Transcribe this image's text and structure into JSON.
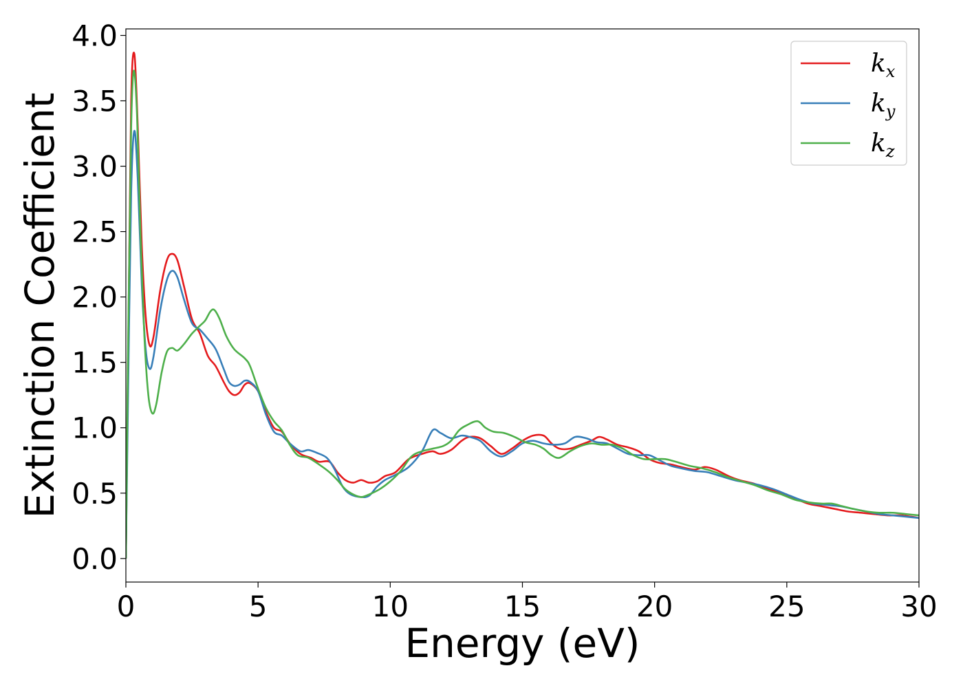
{
  "chart_data": {
    "type": "line",
    "xlabel": "Energy (eV)",
    "ylabel": "Extinction Coefficient",
    "xlim": [
      0,
      30
    ],
    "ylim": [
      -0.18,
      4.05
    ],
    "x_ticks": [
      0,
      5,
      10,
      15,
      20,
      25,
      30
    ],
    "x_tick_labels": [
      "0",
      "5",
      "10",
      "15",
      "20",
      "25",
      "30"
    ],
    "y_ticks": [
      0.0,
      0.5,
      1.0,
      1.5,
      2.0,
      2.5,
      3.0,
      3.5,
      4.0
    ],
    "y_tick_labels": [
      "0.0",
      "0.5",
      "1.0",
      "1.5",
      "2.0",
      "2.5",
      "3.0",
      "3.5",
      "4.0"
    ],
    "grid": false,
    "legend_position": "top-right",
    "series": [
      {
        "name": "k_x",
        "label_base": "k",
        "label_sub": "x",
        "color": "#e41a1c",
        "points": [
          [
            0,
            0.0
          ],
          [
            0.1,
            1.8
          ],
          [
            0.2,
            3.5
          ],
          [
            0.32,
            3.86
          ],
          [
            0.45,
            3.3
          ],
          [
            0.6,
            2.4
          ],
          [
            0.75,
            1.85
          ],
          [
            0.9,
            1.63
          ],
          [
            1.05,
            1.7
          ],
          [
            1.3,
            2.05
          ],
          [
            1.55,
            2.28
          ],
          [
            1.75,
            2.33
          ],
          [
            1.95,
            2.28
          ],
          [
            2.2,
            2.08
          ],
          [
            2.5,
            1.83
          ],
          [
            2.8,
            1.72
          ],
          [
            3.1,
            1.55
          ],
          [
            3.4,
            1.47
          ],
          [
            3.7,
            1.35
          ],
          [
            3.9,
            1.28
          ],
          [
            4.1,
            1.25
          ],
          [
            4.3,
            1.27
          ],
          [
            4.5,
            1.33
          ],
          [
            4.7,
            1.34
          ],
          [
            5.0,
            1.28
          ],
          [
            5.3,
            1.12
          ],
          [
            5.6,
            1.0
          ],
          [
            5.9,
            0.97
          ],
          [
            6.2,
            0.88
          ],
          [
            6.6,
            0.8
          ],
          [
            7.0,
            0.77
          ],
          [
            7.3,
            0.74
          ],
          [
            7.7,
            0.74
          ],
          [
            8.0,
            0.66
          ],
          [
            8.3,
            0.6
          ],
          [
            8.6,
            0.58
          ],
          [
            8.9,
            0.6
          ],
          [
            9.2,
            0.58
          ],
          [
            9.5,
            0.59
          ],
          [
            9.8,
            0.63
          ],
          [
            10.2,
            0.66
          ],
          [
            10.7,
            0.76
          ],
          [
            11.2,
            0.8
          ],
          [
            11.6,
            0.82
          ],
          [
            11.9,
            0.8
          ],
          [
            12.3,
            0.83
          ],
          [
            12.7,
            0.9
          ],
          [
            13.0,
            0.93
          ],
          [
            13.4,
            0.92
          ],
          [
            13.8,
            0.86
          ],
          [
            14.2,
            0.8
          ],
          [
            14.6,
            0.84
          ],
          [
            15.0,
            0.9
          ],
          [
            15.4,
            0.94
          ],
          [
            15.8,
            0.94
          ],
          [
            16.1,
            0.88
          ],
          [
            16.4,
            0.84
          ],
          [
            16.8,
            0.84
          ],
          [
            17.2,
            0.87
          ],
          [
            17.6,
            0.9
          ],
          [
            17.9,
            0.93
          ],
          [
            18.2,
            0.91
          ],
          [
            18.6,
            0.87
          ],
          [
            19.0,
            0.85
          ],
          [
            19.4,
            0.82
          ],
          [
            19.8,
            0.76
          ],
          [
            20.2,
            0.73
          ],
          [
            20.6,
            0.72
          ],
          [
            21.0,
            0.7
          ],
          [
            21.5,
            0.68
          ],
          [
            21.9,
            0.7
          ],
          [
            22.3,
            0.68
          ],
          [
            22.8,
            0.63
          ],
          [
            23.2,
            0.6
          ],
          [
            23.8,
            0.57
          ],
          [
            24.3,
            0.53
          ],
          [
            24.8,
            0.5
          ],
          [
            25.3,
            0.46
          ],
          [
            25.8,
            0.42
          ],
          [
            26.3,
            0.4
          ],
          [
            26.8,
            0.38
          ],
          [
            27.3,
            0.36
          ],
          [
            27.8,
            0.35
          ],
          [
            28.3,
            0.34
          ],
          [
            28.8,
            0.33
          ],
          [
            29.3,
            0.33
          ],
          [
            29.7,
            0.32
          ],
          [
            30.0,
            0.31
          ]
        ]
      },
      {
        "name": "k_y",
        "label_base": "k",
        "label_sub": "y",
        "color": "#377eb8",
        "points": [
          [
            0,
            0.0
          ],
          [
            0.1,
            1.5
          ],
          [
            0.2,
            2.8
          ],
          [
            0.32,
            3.27
          ],
          [
            0.45,
            2.9
          ],
          [
            0.6,
            2.1
          ],
          [
            0.75,
            1.6
          ],
          [
            0.9,
            1.45
          ],
          [
            1.05,
            1.55
          ],
          [
            1.3,
            1.9
          ],
          [
            1.55,
            2.13
          ],
          [
            1.75,
            2.2
          ],
          [
            1.95,
            2.15
          ],
          [
            2.2,
            1.98
          ],
          [
            2.5,
            1.8
          ],
          [
            2.8,
            1.75
          ],
          [
            3.1,
            1.68
          ],
          [
            3.4,
            1.6
          ],
          [
            3.7,
            1.45
          ],
          [
            3.9,
            1.35
          ],
          [
            4.1,
            1.32
          ],
          [
            4.3,
            1.33
          ],
          [
            4.5,
            1.36
          ],
          [
            4.7,
            1.35
          ],
          [
            5.0,
            1.28
          ],
          [
            5.3,
            1.1
          ],
          [
            5.6,
            0.97
          ],
          [
            5.9,
            0.94
          ],
          [
            6.2,
            0.88
          ],
          [
            6.6,
            0.82
          ],
          [
            6.9,
            0.83
          ],
          [
            7.2,
            0.81
          ],
          [
            7.6,
            0.77
          ],
          [
            7.9,
            0.68
          ],
          [
            8.2,
            0.55
          ],
          [
            8.5,
            0.49
          ],
          [
            8.9,
            0.47
          ],
          [
            9.2,
            0.48
          ],
          [
            9.5,
            0.55
          ],
          [
            9.8,
            0.6
          ],
          [
            10.2,
            0.64
          ],
          [
            10.7,
            0.7
          ],
          [
            11.2,
            0.82
          ],
          [
            11.6,
            0.98
          ],
          [
            11.9,
            0.96
          ],
          [
            12.3,
            0.92
          ],
          [
            12.7,
            0.94
          ],
          [
            13.0,
            0.93
          ],
          [
            13.4,
            0.9
          ],
          [
            13.8,
            0.82
          ],
          [
            14.2,
            0.78
          ],
          [
            14.6,
            0.82
          ],
          [
            15.0,
            0.88
          ],
          [
            15.4,
            0.9
          ],
          [
            15.8,
            0.88
          ],
          [
            16.2,
            0.87
          ],
          [
            16.6,
            0.88
          ],
          [
            17.0,
            0.93
          ],
          [
            17.4,
            0.92
          ],
          [
            17.8,
            0.89
          ],
          [
            18.2,
            0.88
          ],
          [
            18.6,
            0.84
          ],
          [
            19.0,
            0.8
          ],
          [
            19.4,
            0.79
          ],
          [
            19.8,
            0.79
          ],
          [
            20.2,
            0.75
          ],
          [
            20.6,
            0.71
          ],
          [
            21.0,
            0.69
          ],
          [
            21.5,
            0.67
          ],
          [
            22.0,
            0.66
          ],
          [
            22.5,
            0.63
          ],
          [
            23.0,
            0.6
          ],
          [
            23.5,
            0.58
          ],
          [
            24.0,
            0.56
          ],
          [
            24.5,
            0.53
          ],
          [
            25.0,
            0.49
          ],
          [
            25.5,
            0.45
          ],
          [
            26.0,
            0.42
          ],
          [
            26.5,
            0.41
          ],
          [
            27.0,
            0.4
          ],
          [
            27.5,
            0.38
          ],
          [
            28.0,
            0.36
          ],
          [
            28.5,
            0.34
          ],
          [
            29.0,
            0.33
          ],
          [
            29.5,
            0.32
          ],
          [
            30.0,
            0.31
          ]
        ]
      },
      {
        "name": "k_z",
        "label_base": "k",
        "label_sub": "z",
        "color": "#4daf4a",
        "points": [
          [
            0,
            0.0
          ],
          [
            0.1,
            1.9
          ],
          [
            0.2,
            3.3
          ],
          [
            0.3,
            3.73
          ],
          [
            0.42,
            3.4
          ],
          [
            0.55,
            2.5
          ],
          [
            0.7,
            1.7
          ],
          [
            0.85,
            1.25
          ],
          [
            1.0,
            1.11
          ],
          [
            1.15,
            1.18
          ],
          [
            1.35,
            1.42
          ],
          [
            1.55,
            1.58
          ],
          [
            1.75,
            1.61
          ],
          [
            1.95,
            1.59
          ],
          [
            2.2,
            1.64
          ],
          [
            2.5,
            1.72
          ],
          [
            2.8,
            1.78
          ],
          [
            3.0,
            1.82
          ],
          [
            3.2,
            1.89
          ],
          [
            3.35,
            1.9
          ],
          [
            3.55,
            1.83
          ],
          [
            3.8,
            1.7
          ],
          [
            4.1,
            1.6
          ],
          [
            4.5,
            1.53
          ],
          [
            4.7,
            1.47
          ],
          [
            5.0,
            1.3
          ],
          [
            5.3,
            1.15
          ],
          [
            5.6,
            1.05
          ],
          [
            5.9,
            0.98
          ],
          [
            6.2,
            0.87
          ],
          [
            6.5,
            0.79
          ],
          [
            6.9,
            0.77
          ],
          [
            7.3,
            0.72
          ],
          [
            7.7,
            0.66
          ],
          [
            8.0,
            0.6
          ],
          [
            8.3,
            0.53
          ],
          [
            8.6,
            0.49
          ],
          [
            8.9,
            0.47
          ],
          [
            9.2,
            0.49
          ],
          [
            9.6,
            0.53
          ],
          [
            10.0,
            0.59
          ],
          [
            10.4,
            0.67
          ],
          [
            10.8,
            0.78
          ],
          [
            11.2,
            0.82
          ],
          [
            11.6,
            0.84
          ],
          [
            12.0,
            0.86
          ],
          [
            12.3,
            0.9
          ],
          [
            12.6,
            0.98
          ],
          [
            12.9,
            1.02
          ],
          [
            13.3,
            1.05
          ],
          [
            13.6,
            1.0
          ],
          [
            13.9,
            0.97
          ],
          [
            14.3,
            0.96
          ],
          [
            14.7,
            0.93
          ],
          [
            15.1,
            0.89
          ],
          [
            15.5,
            0.87
          ],
          [
            15.8,
            0.84
          ],
          [
            16.1,
            0.79
          ],
          [
            16.4,
            0.77
          ],
          [
            16.8,
            0.82
          ],
          [
            17.2,
            0.86
          ],
          [
            17.6,
            0.88
          ],
          [
            18.0,
            0.87
          ],
          [
            18.4,
            0.87
          ],
          [
            18.8,
            0.84
          ],
          [
            19.2,
            0.79
          ],
          [
            19.6,
            0.76
          ],
          [
            20.0,
            0.76
          ],
          [
            20.4,
            0.76
          ],
          [
            20.8,
            0.74
          ],
          [
            21.3,
            0.71
          ],
          [
            21.8,
            0.69
          ],
          [
            22.3,
            0.66
          ],
          [
            22.8,
            0.62
          ],
          [
            23.3,
            0.59
          ],
          [
            23.8,
            0.56
          ],
          [
            24.3,
            0.52
          ],
          [
            24.8,
            0.49
          ],
          [
            25.3,
            0.45
          ],
          [
            25.8,
            0.43
          ],
          [
            26.3,
            0.42
          ],
          [
            26.7,
            0.42
          ],
          [
            27.1,
            0.4
          ],
          [
            27.5,
            0.38
          ],
          [
            28.0,
            0.36
          ],
          [
            28.5,
            0.35
          ],
          [
            29.0,
            0.35
          ],
          [
            29.5,
            0.34
          ],
          [
            30.0,
            0.33
          ]
        ]
      }
    ]
  }
}
